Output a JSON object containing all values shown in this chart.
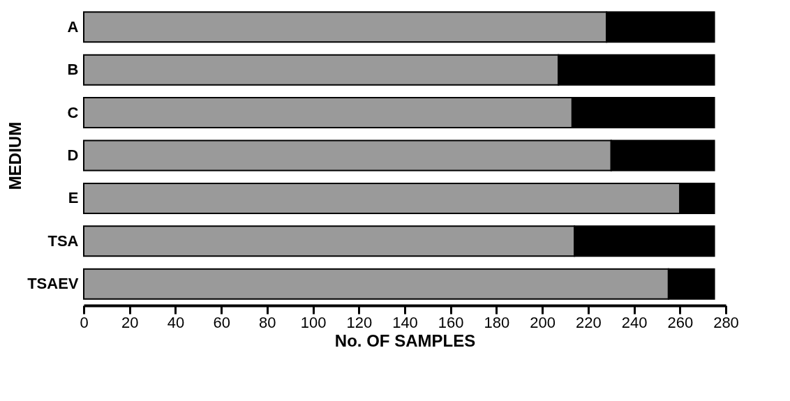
{
  "chart_data": {
    "type": "bar",
    "orientation": "horizontal",
    "stacked": true,
    "xlabel": "No. OF SAMPLES",
    "ylabel": "MEDIUM",
    "categories": [
      "A",
      "B",
      "C",
      "D",
      "E",
      "TSA",
      "TSAEV"
    ],
    "series": [
      {
        "color": "#9a9a9a",
        "values": [
          228,
          207,
          213,
          230,
          260,
          214,
          255
        ]
      },
      {
        "color": "#000000",
        "values": [
          47,
          68,
          62,
          45,
          15,
          61,
          20
        ]
      }
    ],
    "xlim": [
      0,
      280
    ],
    "xticks": [
      0,
      20,
      40,
      60,
      80,
      100,
      120,
      140,
      160,
      180,
      200,
      220,
      240,
      260,
      280
    ],
    "grid": false,
    "legend": false
  }
}
